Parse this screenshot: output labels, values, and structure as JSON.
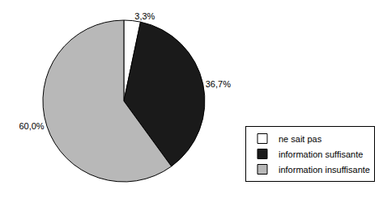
{
  "chart_data": {
    "type": "pie",
    "categories": [
      "ne sait pas",
      "information suffisante",
      "information insuffisante"
    ],
    "values": [
      3.3,
      36.7,
      60.0
    ],
    "value_labels": [
      "3,3%",
      "36,7%",
      "60,0%"
    ],
    "colors": [
      "#ffffff",
      "#1a1a1a",
      "#b8b8b8"
    ],
    "data_labels": true,
    "legend": "lower right"
  }
}
